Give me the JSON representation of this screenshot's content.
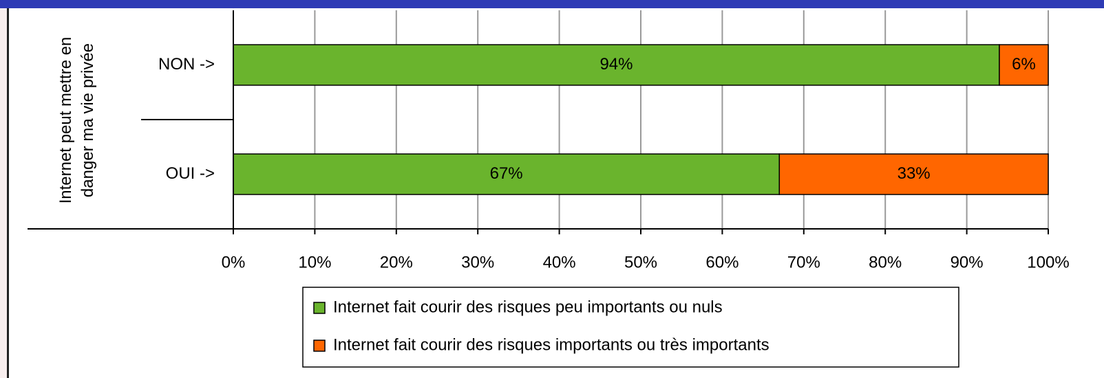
{
  "chart_data": {
    "type": "stacked_barh",
    "y_label": "Internet peut mettre en danger ma vie privée",
    "categories": [
      "NON ->",
      "OUI ->"
    ],
    "series": [
      {
        "name": "Internet fait courir des risques peu importants ou nuls",
        "color": "#6ab42d",
        "values": [
          94,
          67
        ],
        "value_labels": [
          "94%",
          "67%"
        ]
      },
      {
        "name": "Internet fait courir des risques importants ou très importants",
        "color": "#ff6600",
        "values": [
          6,
          33
        ],
        "value_labels": [
          "6%",
          "33%"
        ]
      }
    ],
    "xlim": [
      0,
      100
    ],
    "xticks": [
      {
        "value": 0,
        "label": "0%"
      },
      {
        "value": 10,
        "label": "10%"
      },
      {
        "value": 20,
        "label": "20%"
      },
      {
        "value": 30,
        "label": "30%"
      },
      {
        "value": 40,
        "label": "40%"
      },
      {
        "value": 50,
        "label": "50%"
      },
      {
        "value": 60,
        "label": "60%"
      },
      {
        "value": 70,
        "label": "70%"
      },
      {
        "value": 80,
        "label": "80%"
      },
      {
        "value": 90,
        "label": "90%"
      },
      {
        "value": 100,
        "label": "100%"
      }
    ],
    "grid": true
  }
}
